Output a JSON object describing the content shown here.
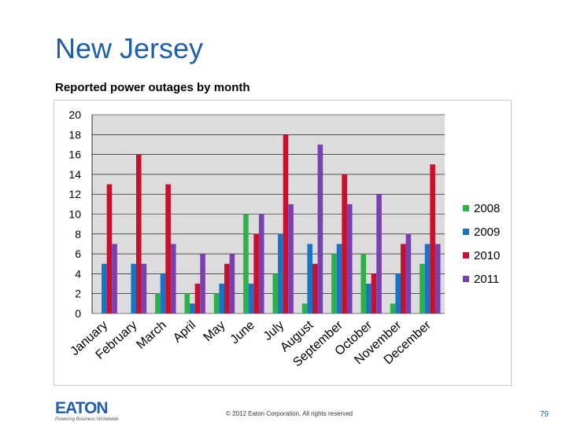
{
  "slide": {
    "title": "New Jersey",
    "subtitle": "Reported power outages by month",
    "copyright": "© 2012 Eaton Corporation. All rights reserved",
    "page_number": "79",
    "logo_text": "EATON",
    "logo_tagline": "Powering Business Worldwide"
  },
  "colors": {
    "title": "#1f5fa8",
    "plot_bg": "#dcdcdc",
    "grid": "#000000"
  },
  "chart_data": {
    "type": "bar",
    "title": "Reported power outages by month",
    "xlabel": "",
    "ylabel": "",
    "ylim": [
      0,
      20
    ],
    "yticks": [
      0,
      2,
      4,
      6,
      8,
      10,
      12,
      14,
      16,
      18,
      20
    ],
    "grid": true,
    "legend_position": "right",
    "categories": [
      "January",
      "February",
      "March",
      "April",
      "May",
      "June",
      "July",
      "August",
      "September",
      "October",
      "November",
      "December"
    ],
    "series": [
      {
        "name": "2008",
        "color": "#2db24a",
        "values": [
          0,
          0,
          2,
          2,
          2,
          10,
          4,
          1,
          6,
          6,
          1,
          5
        ]
      },
      {
        "name": "2009",
        "color": "#1874c8",
        "values": [
          5,
          5,
          4,
          1,
          3,
          3,
          8,
          7,
          7,
          3,
          4,
          7
        ]
      },
      {
        "name": "2010",
        "color": "#c8102e",
        "values": [
          13,
          16,
          13,
          3,
          5,
          8,
          18,
          5,
          14,
          4,
          7,
          15
        ]
      },
      {
        "name": "2011",
        "color": "#7b3fb0",
        "values": [
          7,
          5,
          7,
          6,
          6,
          10,
          11,
          17,
          11,
          12,
          8,
          7
        ]
      }
    ]
  }
}
